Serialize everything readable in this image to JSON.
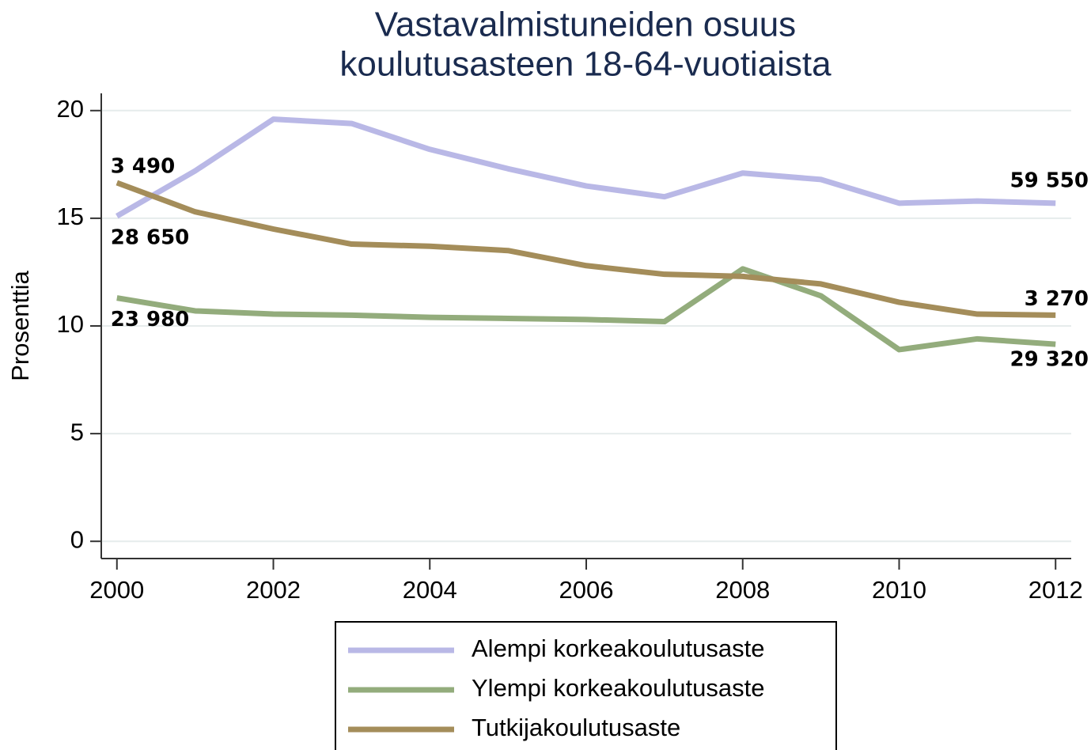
{
  "chart_data": {
    "type": "line",
    "title": [
      "Vastavalmistuneiden osuus",
      "koulutusasteen 18-64-vuotiaista"
    ],
    "ylabel": "Prosenttia",
    "x": [
      2000,
      2001,
      2002,
      2003,
      2004,
      2005,
      2006,
      2007,
      2008,
      2009,
      2010,
      2011,
      2012
    ],
    "series": [
      {
        "name": "Alempi korkeakoulutusaste",
        "color": "#b9b8e6",
        "values": [
          15.1,
          17.2,
          19.6,
          19.4,
          18.2,
          17.3,
          16.5,
          16.0,
          17.1,
          16.8,
          15.7,
          15.8,
          15.7
        ],
        "start_label": "28 650",
        "end_label": "59 550"
      },
      {
        "name": "Ylempi korkeakoulutusaste",
        "color": "#93ac7c",
        "values": [
          11.3,
          10.7,
          10.55,
          10.5,
          10.4,
          10.35,
          10.3,
          10.2,
          12.65,
          11.4,
          8.9,
          9.4,
          9.15
        ],
        "start_label": "23 980",
        "end_label": "29 320"
      },
      {
        "name": "Tutkijakoulutusaste",
        "color": "#a48d5a",
        "values": [
          16.65,
          15.3,
          14.5,
          13.8,
          13.7,
          13.5,
          12.8,
          12.4,
          12.3,
          11.95,
          11.1,
          10.55,
          10.5
        ],
        "start_label": "3 490",
        "end_label": "3 270"
      }
    ],
    "xlim": [
      1999.8,
      2012.2
    ],
    "xticks": [
      2000,
      2002,
      2004,
      2006,
      2008,
      2010,
      2012
    ],
    "ylim": [
      -0.8,
      20.8
    ],
    "yticks": [
      0,
      5,
      10,
      15,
      20
    ],
    "grid": true
  }
}
